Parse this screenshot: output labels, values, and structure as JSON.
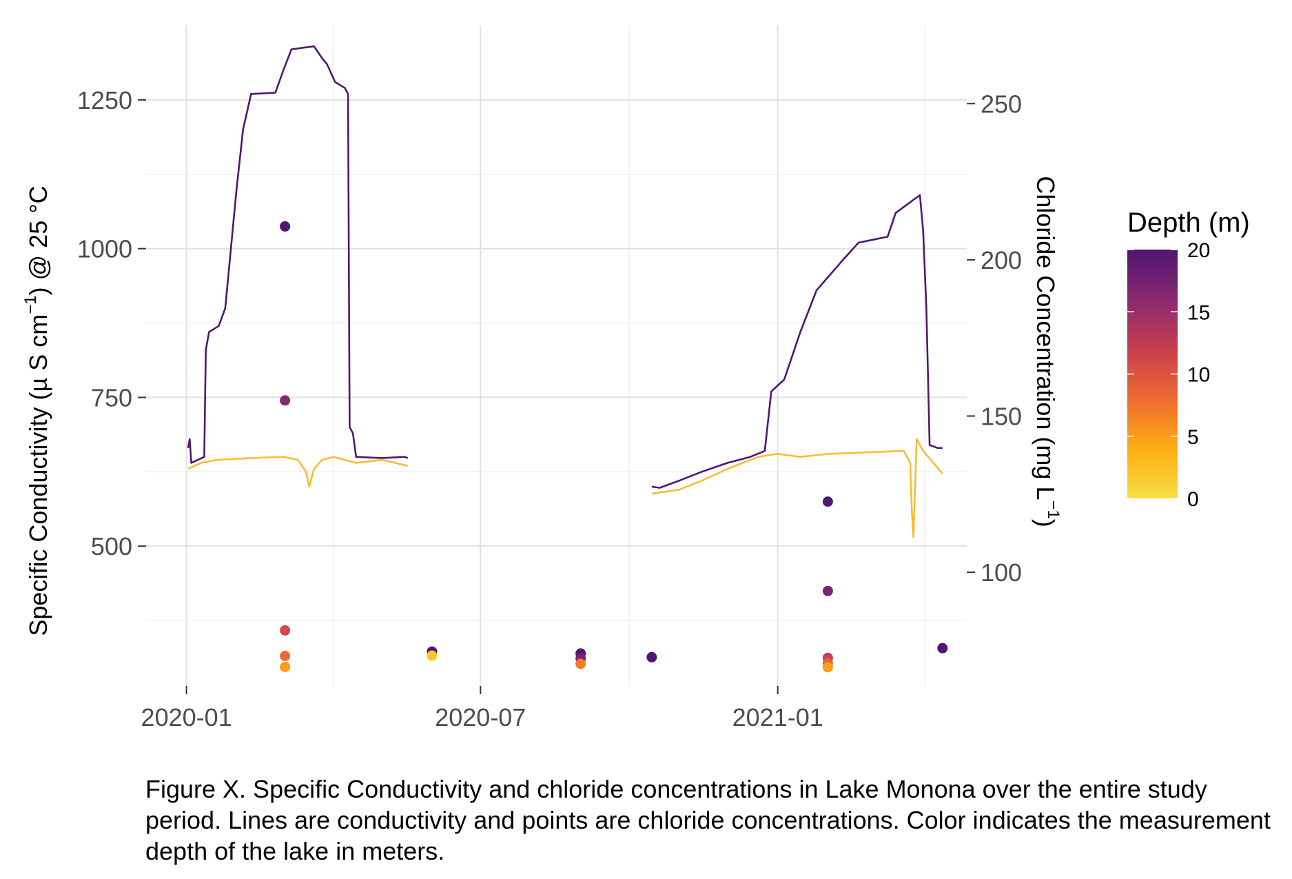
{
  "chart_data": {
    "type": "line",
    "title": "",
    "xlabel": "",
    "x_ticks": [
      "2020-01-01",
      "2020-07-01",
      "2021-01-01"
    ],
    "x_tick_labels": [
      "2020-01",
      "2020-07",
      "2021-01"
    ],
    "xlim": [
      "2019-12-07",
      "2021-04-28"
    ],
    "ylabel_left": {
      "main": "Specific Conductivity (",
      "mu": "µ",
      "unit": " S cm",
      "sup": "−1",
      "tail": ") @ 25 °C"
    },
    "ylabel_right": {
      "main": "Chloride Concentration (mg L",
      "sup": "−1",
      "tail": ")"
    },
    "y_left_ticks": [
      500,
      750,
      1000,
      1250
    ],
    "y_left_lim": [
      265,
      1375
    ],
    "y_right_ticks": [
      100,
      150,
      200,
      250
    ],
    "y_right_lim": [
      63.6,
      275
    ],
    "grid": true,
    "legend": {
      "title": "Depth (m)",
      "position": "right",
      "ticks": [
        0,
        5,
        10,
        15,
        20
      ],
      "colors": [
        "#f7dd45",
        "#fcae12",
        "#ef6a32",
        "#c63f4f",
        "#892870",
        "#4f1673"
      ]
    },
    "series": [
      {
        "depth": 20,
        "color": "#4f1673",
        "points": [
          [
            "2020-01-02",
            665
          ],
          [
            "2020-01-03",
            680
          ],
          [
            "2020-01-04",
            640
          ],
          [
            "2020-01-12",
            650
          ],
          [
            "2020-01-13",
            830
          ],
          [
            "2020-01-15",
            860
          ],
          [
            "2020-01-21",
            870
          ],
          [
            "2020-01-25",
            900
          ],
          [
            "2020-02-01",
            1100
          ],
          [
            "2020-02-05",
            1200
          ],
          [
            "2020-02-10",
            1260
          ],
          [
            "2020-02-25",
            1262
          ],
          [
            "2020-03-01",
            1300
          ],
          [
            "2020-03-06",
            1335
          ],
          [
            "2020-03-20",
            1340
          ],
          [
            "2020-03-25",
            1320
          ],
          [
            "2020-03-28",
            1310
          ],
          [
            "2020-04-02",
            1280
          ],
          [
            "2020-04-08",
            1270
          ],
          [
            "2020-04-10",
            1260
          ],
          [
            "2020-04-11",
            700
          ],
          [
            "2020-04-13",
            690
          ],
          [
            "2020-04-15",
            650
          ],
          [
            "2020-05-01",
            648
          ],
          [
            "2020-05-15",
            650
          ],
          [
            "2020-05-17",
            648
          ],
          null,
          [
            "2020-10-15",
            600
          ],
          [
            "2020-10-20",
            598
          ],
          [
            "2020-11-01",
            610
          ],
          [
            "2020-11-15",
            625
          ],
          [
            "2020-12-01",
            640
          ],
          [
            "2020-12-15",
            650
          ],
          [
            "2020-12-24",
            660
          ],
          [
            "2020-12-28",
            760
          ],
          [
            "2021-01-05",
            780
          ],
          [
            "2021-01-15",
            860
          ],
          [
            "2021-01-25",
            930
          ],
          [
            "2021-02-10",
            980
          ],
          [
            "2021-02-20",
            1010
          ],
          [
            "2021-03-10",
            1020
          ],
          [
            "2021-03-15",
            1060
          ],
          [
            "2021-03-25",
            1080
          ],
          [
            "2021-03-30",
            1090
          ],
          [
            "2021-04-01",
            1030
          ],
          [
            "2021-04-03",
            900
          ],
          [
            "2021-04-05",
            670
          ],
          [
            "2021-04-10",
            665
          ],
          [
            "2021-04-13",
            665
          ]
        ]
      },
      {
        "depth": 0,
        "color": "#f6bd33",
        "points": [
          [
            "2020-01-02",
            630
          ],
          [
            "2020-01-10",
            640
          ],
          [
            "2020-01-20",
            645
          ],
          [
            "2020-02-10",
            648
          ],
          [
            "2020-03-01",
            650
          ],
          [
            "2020-03-10",
            645
          ],
          [
            "2020-03-15",
            625
          ],
          [
            "2020-03-17",
            600
          ],
          [
            "2020-03-20",
            630
          ],
          [
            "2020-03-25",
            645
          ],
          [
            "2020-04-01",
            650
          ],
          [
            "2020-04-15",
            640
          ],
          [
            "2020-05-01",
            645
          ],
          [
            "2020-05-17",
            635
          ],
          null,
          [
            "2020-10-15",
            588
          ],
          [
            "2020-11-01",
            595
          ],
          [
            "2020-11-15",
            610
          ],
          [
            "2020-12-01",
            630
          ],
          [
            "2020-12-20",
            650
          ],
          [
            "2021-01-01",
            655
          ],
          [
            "2021-01-15",
            650
          ],
          [
            "2021-02-01",
            655
          ],
          [
            "2021-03-01",
            658
          ],
          [
            "2021-03-20",
            660
          ],
          [
            "2021-03-24",
            640
          ],
          [
            "2021-03-25",
            560
          ],
          [
            "2021-03-26",
            515
          ],
          [
            "2021-03-28",
            680
          ],
          [
            "2021-04-01",
            660
          ],
          [
            "2021-04-13",
            622
          ]
        ]
      }
    ],
    "points": [
      {
        "date": "2020-03-02",
        "chloride": 210.7,
        "depth": 20
      },
      {
        "date": "2020-03-02",
        "chloride": 155.0,
        "depth": 16
      },
      {
        "date": "2020-03-02",
        "chloride": 81.4,
        "depth": 11
      },
      {
        "date": "2020-03-02",
        "chloride": 73.2,
        "depth": 8
      },
      {
        "date": "2020-03-02",
        "chloride": 69.7,
        "depth": 5
      },
      {
        "date": "2020-06-01",
        "chloride": 74.6,
        "depth": 20
      },
      {
        "date": "2020-06-01",
        "chloride": 73.3,
        "depth": 2
      },
      {
        "date": "2020-09-01",
        "chloride": 74.0,
        "depth": 20
      },
      {
        "date": "2020-09-01",
        "chloride": 72.4,
        "depth": 17
      },
      {
        "date": "2020-09-01",
        "chloride": 70.7,
        "depth": 7
      },
      {
        "date": "2020-10-15",
        "chloride": 72.8,
        "depth": 20
      },
      {
        "date": "2021-02-01",
        "chloride": 122.6,
        "depth": 20
      },
      {
        "date": "2021-02-01",
        "chloride": 94.0,
        "depth": 17
      },
      {
        "date": "2021-02-01",
        "chloride": 72.6,
        "depth": 12
      },
      {
        "date": "2021-02-01",
        "chloride": 70.9,
        "depth": 9
      },
      {
        "date": "2021-02-01",
        "chloride": 69.6,
        "depth": 5
      },
      {
        "date": "2021-04-13",
        "chloride": 75.7,
        "depth": 20
      }
    ]
  },
  "caption": "Figure X. Specific Conductivity and chloride concentrations in Lake Monona over the entire study period. Lines are conductivity and points are chloride concentrations. Color indicates the measurement depth of the lake in meters."
}
